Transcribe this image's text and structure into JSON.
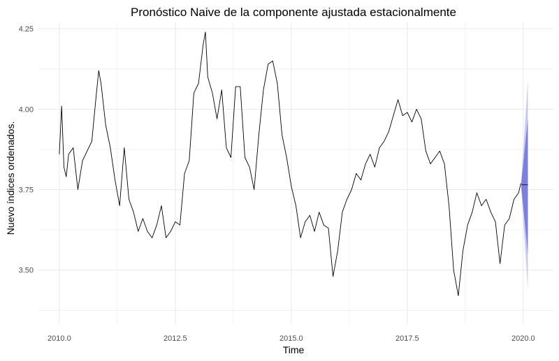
{
  "chart_data": {
    "type": "line",
    "title": "Pronóstico Naive de la componente ajustada estacionalmente",
    "xlabel": "Time",
    "ylabel": "Nuevo índices ordenados.",
    "xlim": [
      2009.55,
      2020.65
    ],
    "ylim": [
      3.33,
      4.27
    ],
    "x_ticks": [
      2010.0,
      2012.5,
      2015.0,
      2017.5,
      2020.0
    ],
    "x_tick_labels": [
      "2010.0",
      "2012.5",
      "2015.0",
      "2017.5",
      "2020.0"
    ],
    "y_ticks": [
      3.5,
      3.75,
      4.0,
      4.25
    ],
    "y_tick_labels": [
      "3.50",
      "3.75",
      "4.00",
      "4.25"
    ],
    "grid": true,
    "series": [
      {
        "x": [
          2010.0,
          2010.05,
          2010.1,
          2010.15,
          2010.2,
          2010.3,
          2010.4,
          2010.5,
          2010.6,
          2010.7,
          2010.8,
          2010.85,
          2010.9,
          2011.0,
          2011.1,
          2011.2,
          2011.3,
          2011.4,
          2011.5,
          2011.6,
          2011.7,
          2011.8,
          2011.9,
          2012.0,
          2012.1,
          2012.2,
          2012.3,
          2012.4,
          2012.5,
          2012.6,
          2012.7,
          2012.8,
          2012.9,
          2013.0,
          2013.1,
          2013.15,
          2013.2,
          2013.3,
          2013.4,
          2013.5,
          2013.6,
          2013.7,
          2013.8,
          2013.9,
          2014.0,
          2014.1,
          2014.2,
          2014.3,
          2014.4,
          2014.5,
          2014.6,
          2014.7,
          2014.8,
          2014.9,
          2015.0,
          2015.1,
          2015.2,
          2015.3,
          2015.4,
          2015.5,
          2015.6,
          2015.7,
          2015.8,
          2015.9,
          2016.0,
          2016.1,
          2016.2,
          2016.3,
          2016.4,
          2016.5,
          2016.6,
          2016.7,
          2016.8,
          2016.9,
          2017.0,
          2017.1,
          2017.2,
          2017.3,
          2017.4,
          2017.5,
          2017.6,
          2017.7,
          2017.8,
          2017.9,
          2018.0,
          2018.1,
          2018.2,
          2018.3,
          2018.4,
          2018.5,
          2018.6,
          2018.7,
          2018.8,
          2018.9,
          2019.0,
          2019.1,
          2019.2,
          2019.3,
          2019.4,
          2019.5,
          2019.6,
          2019.7,
          2019.8,
          2019.9,
          2019.95
        ],
        "y": [
          3.86,
          4.01,
          3.82,
          3.79,
          3.86,
          3.88,
          3.75,
          3.84,
          3.87,
          3.9,
          4.05,
          4.12,
          4.08,
          3.95,
          3.88,
          3.78,
          3.7,
          3.88,
          3.72,
          3.68,
          3.62,
          3.66,
          3.62,
          3.6,
          3.64,
          3.7,
          3.6,
          3.62,
          3.65,
          3.64,
          3.8,
          3.84,
          4.05,
          4.08,
          4.2,
          4.24,
          4.1,
          4.05,
          3.97,
          4.06,
          3.88,
          3.85,
          4.07,
          4.07,
          3.85,
          3.82,
          3.75,
          3.92,
          4.06,
          4.14,
          4.15,
          4.08,
          3.92,
          3.85,
          3.76,
          3.7,
          3.6,
          3.65,
          3.67,
          3.62,
          3.68,
          3.64,
          3.63,
          3.48,
          3.56,
          3.68,
          3.72,
          3.75,
          3.8,
          3.78,
          3.83,
          3.86,
          3.82,
          3.88,
          3.9,
          3.93,
          3.98,
          4.03,
          3.98,
          3.99,
          3.96,
          4.0,
          3.97,
          3.87,
          3.83,
          3.85,
          3.87,
          3.83,
          3.7,
          3.5,
          3.42,
          3.56,
          3.64,
          3.68,
          3.74,
          3.7,
          3.72,
          3.68,
          3.65,
          3.52,
          3.64,
          3.66,
          3.72,
          3.74,
          3.77
        ]
      }
    ],
    "forecast": {
      "x": [
        2019.96,
        2020.1
      ],
      "point": 3.765,
      "lower80": [
        3.755,
        3.55
      ],
      "upper80": [
        3.775,
        3.97
      ],
      "lower95": [
        3.745,
        3.44
      ],
      "upper95": [
        3.785,
        4.09
      ],
      "color80": "#7b7fe0",
      "color95": "#c9caf2"
    },
    "line_color": "#000000",
    "grid_color": "#ebebeb"
  }
}
